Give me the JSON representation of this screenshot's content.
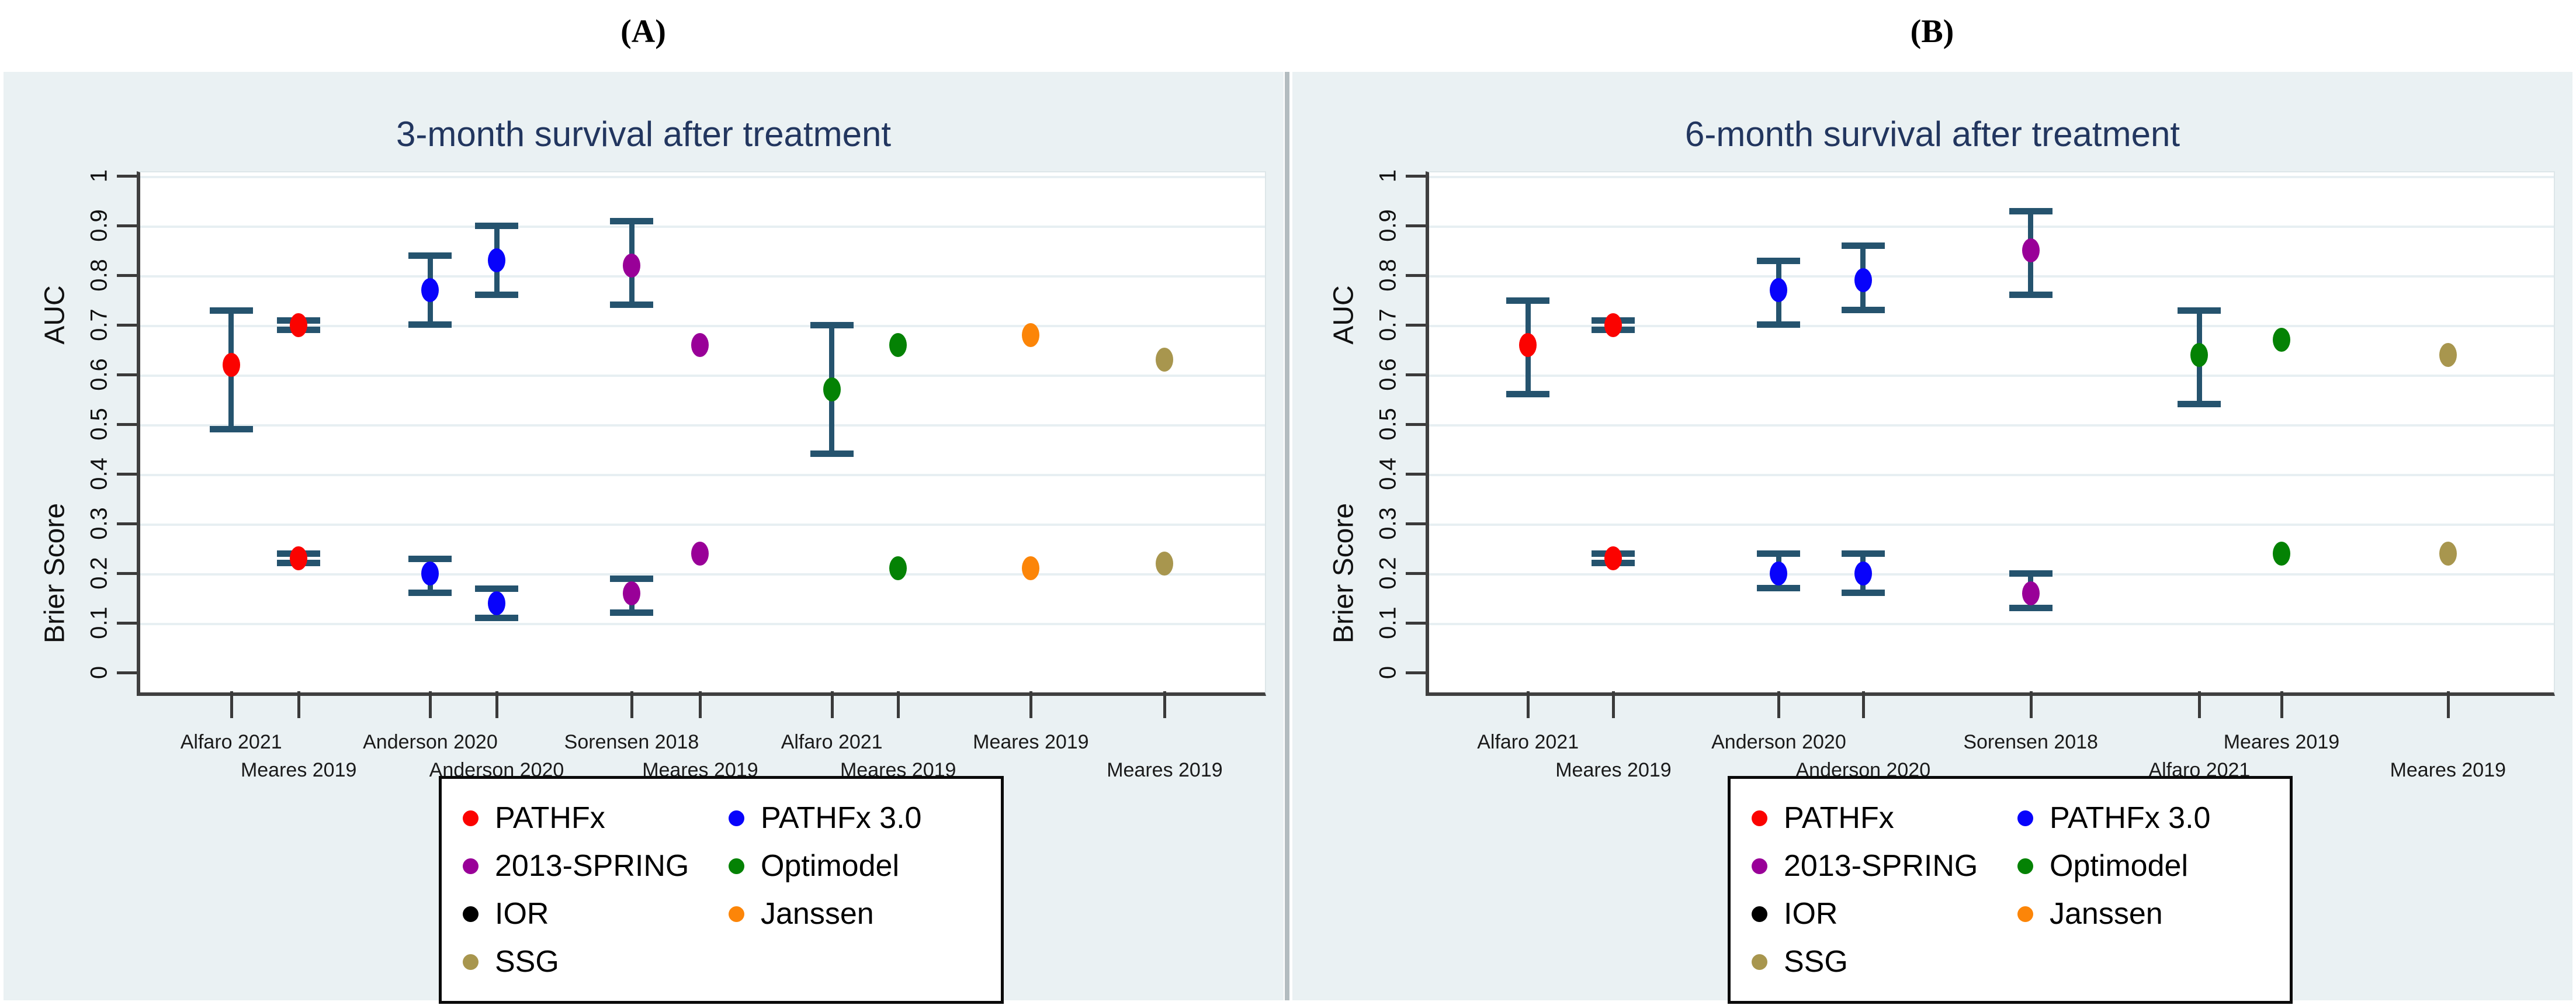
{
  "figure_labels": {
    "a": "(A)",
    "b": "(B)"
  },
  "colors": {
    "background_panel": "#eaf1f3",
    "plot_background": "#ffffff",
    "gridline": "#e7eff2",
    "axis_line": "#3f3f3f",
    "error_bar": "#25536e",
    "title_text": "#22365f",
    "PATHFx": "#fb0300",
    "PATHFx 3.0": "#0803fb",
    "2013-SPRING": "#990098",
    "Optimodel": "#048204",
    "IOR": "#000000",
    "Janssen": "#fc8508",
    "SSG": "#a8964e"
  },
  "legend": {
    "items": [
      {
        "label": "PATHFx",
        "model": "PATHFx"
      },
      {
        "label": "PATHFx 3.0",
        "model": "PATHFx 3.0"
      },
      {
        "label": "2013-SPRING",
        "model": "2013-SPRING"
      },
      {
        "label": "Optimodel",
        "model": "Optimodel"
      },
      {
        "label": "IOR",
        "model": "IOR"
      },
      {
        "label": "Janssen",
        "model": "Janssen"
      },
      {
        "label": "SSG",
        "model": "SSG"
      }
    ]
  },
  "chart_data": [
    {
      "panel": "A",
      "type": "scatter",
      "title": "3-month survival after treatment",
      "grid": true,
      "y_axis": {
        "min": 0,
        "max": 1,
        "ticks": [
          0,
          0.1,
          0.2,
          0.3,
          0.4,
          0.5,
          0.6,
          0.7,
          0.8,
          0.9,
          1
        ],
        "tick_labels": [
          "0",
          "0.1",
          "0.2",
          "0.3",
          "0.4",
          "0.5",
          "0.6",
          "0.7",
          "0.8",
          "0.9",
          "1"
        ],
        "label_top": "AUC",
        "label_bottom": "Brier Score"
      },
      "points": [
        {
          "study": "Alfaro 2021",
          "model": "PATHFx",
          "x_frac": 0.084,
          "label_row": 1,
          "auc": {
            "v": 0.62,
            "lo": 0.49,
            "hi": 0.73
          },
          "brier": null
        },
        {
          "study": "Meares 2019",
          "model": "PATHFx",
          "x_frac": 0.144,
          "label_row": 2,
          "auc": {
            "v": 0.7,
            "lo": 0.69,
            "hi": 0.71
          },
          "brier": {
            "v": 0.23,
            "lo": 0.22,
            "hi": 0.24
          }
        },
        {
          "study": "Anderson 2020",
          "model": "PATHFx 3.0",
          "x_frac": 0.261,
          "label_row": 1,
          "auc": {
            "v": 0.77,
            "lo": 0.7,
            "hi": 0.84
          },
          "brier": {
            "v": 0.2,
            "lo": 0.16,
            "hi": 0.23
          }
        },
        {
          "study": "Anderson 2020",
          "model": "PATHFx 3.0",
          "x_frac": 0.32,
          "label_row": 2,
          "auc": {
            "v": 0.83,
            "lo": 0.76,
            "hi": 0.9
          },
          "brier": {
            "v": 0.14,
            "lo": 0.11,
            "hi": 0.17
          }
        },
        {
          "study": "Sorensen 2018",
          "model": "2013-SPRING",
          "x_frac": 0.44,
          "label_row": 1,
          "auc": {
            "v": 0.82,
            "lo": 0.74,
            "hi": 0.91
          },
          "brier": {
            "v": 0.16,
            "lo": 0.12,
            "hi": 0.19
          }
        },
        {
          "study": "Meares 2019",
          "model": "2013-SPRING",
          "x_frac": 0.501,
          "label_row": 2,
          "auc": {
            "v": 0.66
          },
          "brier": {
            "v": 0.24
          }
        },
        {
          "study": "Alfaro 2021",
          "model": "Optimodel",
          "x_frac": 0.618,
          "label_row": 1,
          "auc": {
            "v": 0.57,
            "lo": 0.44,
            "hi": 0.7
          },
          "brier": null
        },
        {
          "study": "Meares 2019",
          "model": "Optimodel",
          "x_frac": 0.677,
          "label_row": 2,
          "auc": {
            "v": 0.66
          },
          "brier": {
            "v": 0.21
          }
        },
        {
          "study": "Meares 2019",
          "model": "Janssen",
          "x_frac": 0.795,
          "label_row": 1,
          "auc": {
            "v": 0.68
          },
          "brier": {
            "v": 0.21
          }
        },
        {
          "study": "Meares 2019",
          "model": "SSG",
          "x_frac": 0.914,
          "label_row": 2,
          "auc": {
            "v": 0.63
          },
          "brier": {
            "v": 0.22
          }
        }
      ]
    },
    {
      "panel": "B",
      "type": "scatter",
      "title": "6-month survival after treatment",
      "grid": true,
      "y_axis": {
        "min": 0,
        "max": 1,
        "ticks": [
          0,
          0.1,
          0.2,
          0.3,
          0.4,
          0.5,
          0.6,
          0.7,
          0.8,
          0.9,
          1
        ],
        "tick_labels": [
          "0",
          "0.1",
          "0.2",
          "0.3",
          "0.4",
          "0.5",
          "0.6",
          "0.7",
          "0.8",
          "0.9",
          "1"
        ],
        "label_top": "AUC",
        "label_bottom": "Brier Score"
      },
      "points": [
        {
          "study": "Alfaro 2021",
          "model": "PATHFx",
          "x_frac": 0.091,
          "label_row": 1,
          "auc": {
            "v": 0.66,
            "lo": 0.56,
            "hi": 0.75
          },
          "brier": null
        },
        {
          "study": "Meares 2019",
          "model": "PATHFx",
          "x_frac": 0.167,
          "label_row": 2,
          "auc": {
            "v": 0.7,
            "lo": 0.69,
            "hi": 0.71
          },
          "brier": {
            "v": 0.23,
            "lo": 0.22,
            "hi": 0.24
          }
        },
        {
          "study": "Anderson 2020",
          "model": "PATHFx 3.0",
          "x_frac": 0.314,
          "label_row": 1,
          "auc": {
            "v": 0.77,
            "lo": 0.7,
            "hi": 0.83
          },
          "brier": {
            "v": 0.2,
            "lo": 0.17,
            "hi": 0.24
          }
        },
        {
          "study": "Anderson 2020",
          "model": "PATHFx 3.0",
          "x_frac": 0.389,
          "label_row": 2,
          "auc": {
            "v": 0.79,
            "lo": 0.73,
            "hi": 0.86
          },
          "brier": {
            "v": 0.2,
            "lo": 0.16,
            "hi": 0.24
          }
        },
        {
          "study": "Sorensen 2018",
          "model": "2013-SPRING",
          "x_frac": 0.538,
          "label_row": 1,
          "auc": {
            "v": 0.85,
            "lo": 0.76,
            "hi": 0.93
          },
          "brier": {
            "v": 0.16,
            "lo": 0.13,
            "hi": 0.2
          }
        },
        {
          "study": "Alfaro 2021",
          "model": "Optimodel",
          "x_frac": 0.688,
          "label_row": 2,
          "auc": {
            "v": 0.64,
            "lo": 0.54,
            "hi": 0.73
          },
          "brier": null
        },
        {
          "study": "Meares 2019",
          "model": "Optimodel",
          "x_frac": 0.761,
          "label_row": 1,
          "auc": {
            "v": 0.67
          },
          "brier": {
            "v": 0.24
          }
        },
        {
          "study": "Meares 2019",
          "model": "SSG",
          "x_frac": 0.909,
          "label_row": 2,
          "auc": {
            "v": 0.64
          },
          "brier": {
            "v": 0.24
          }
        }
      ]
    }
  ]
}
